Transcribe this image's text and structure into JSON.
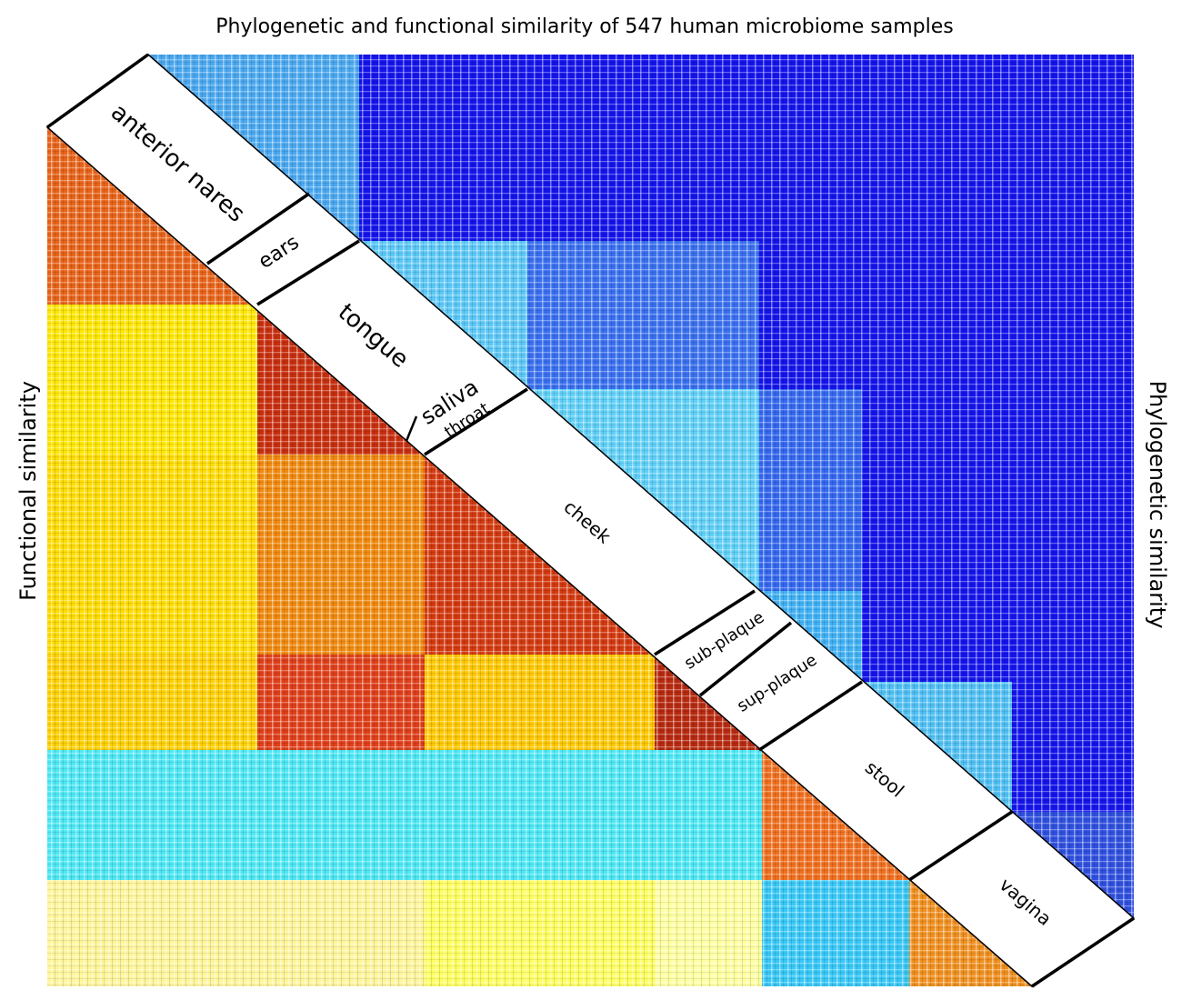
{
  "title": "Phylogenetic and functional similarity of 547 human microbiome samples",
  "left_label": "Functional similarity",
  "right_label": "Phylogenetic similarity",
  "sites": [
    "anterior nares",
    "ears",
    "tongue",
    "saliva",
    "throat",
    "cheek",
    "sub-plaque",
    "sup-plaque",
    "stool",
    "vagina"
  ]
}
